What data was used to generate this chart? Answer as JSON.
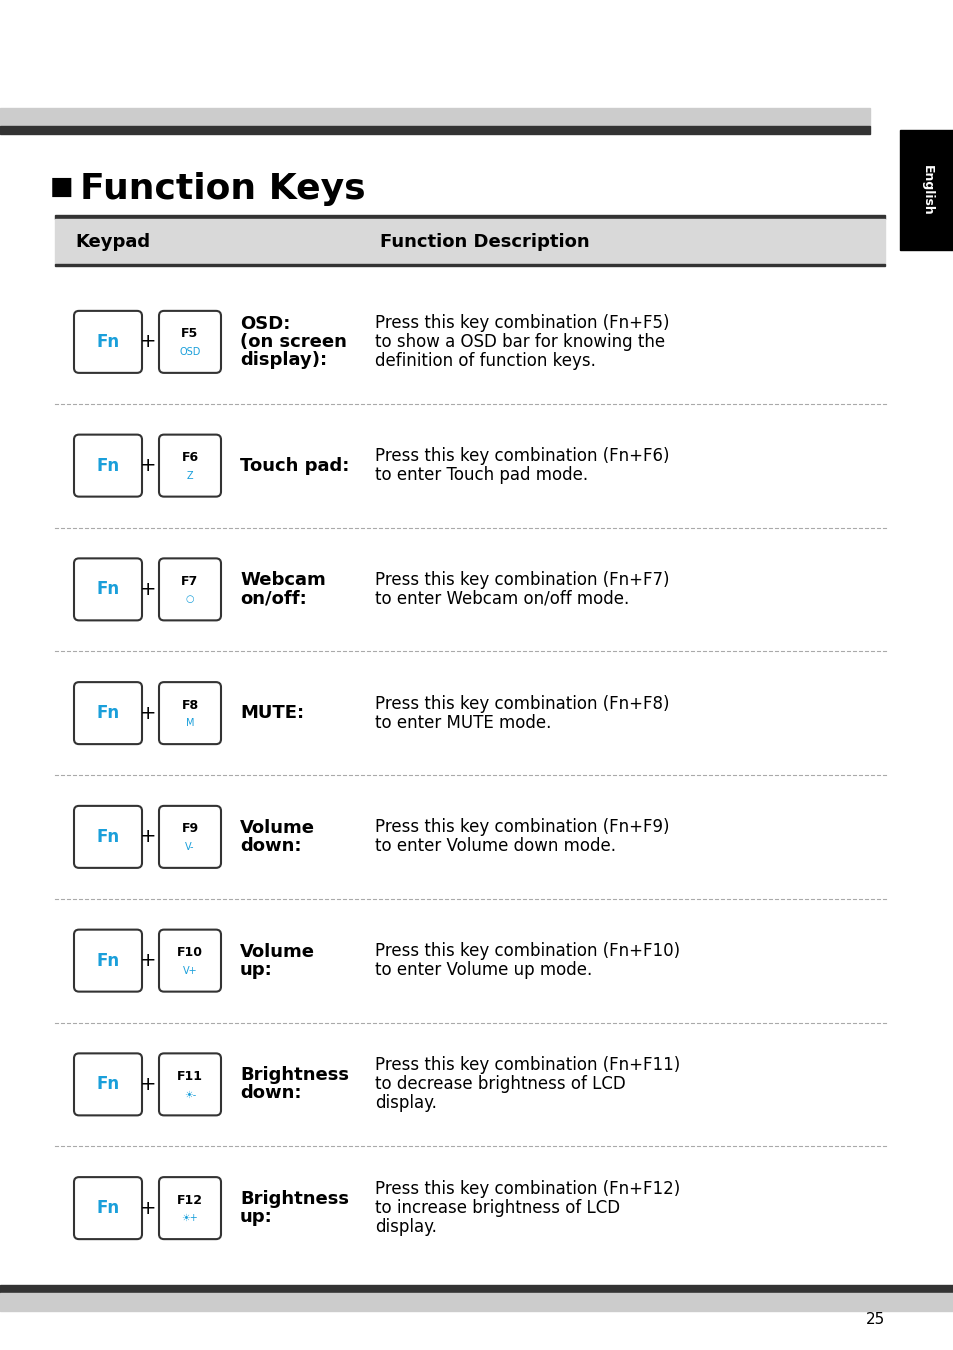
{
  "title": "Function Keys",
  "page_number": "25",
  "header_col1": "Keypad",
  "header_col2": "Function Description",
  "rows": [
    {
      "fn_key": "Fn",
      "fx_key": "F5",
      "fx_sub": "OSD",
      "label": "OSD:\n(on screen\ndisplay):",
      "description": "Press this key combination (Fn+F5)\nto show a OSD bar for knowing the\ndefinition of function keys."
    },
    {
      "fn_key": "Fn",
      "fx_key": "F6",
      "fx_sub": "✓",
      "label": "Touch pad:",
      "description": "Press this key combination (Fn+F6)\nto enter Touch pad mode."
    },
    {
      "fn_key": "Fn",
      "fx_key": "F7",
      "fx_sub": "○",
      "label": "Webcam\non/off:",
      "description": "Press this key combination (Fn+F7)\nto enter Webcam on/off mode."
    },
    {
      "fn_key": "Fn",
      "fx_key": "F8",
      "fx_sub": "🔇",
      "label": "MUTE:",
      "description": "Press this key combination (Fn+F8)\nto enter MUTE mode."
    },
    {
      "fn_key": "Fn",
      "fx_key": "F9",
      "fx_sub": "🔉",
      "label": "Volume\ndown:",
      "description": "Press this key combination (Fn+F9)\nto enter Volume down mode."
    },
    {
      "fn_key": "Fn",
      "fx_key": "F10",
      "fx_sub": "🔊",
      "label": "Volume\nup:",
      "description": "Press this key combination (Fn+F10)\nto enter Volume up mode."
    },
    {
      "fn_key": "Fn",
      "fx_key": "F11",
      "fx_sub": "☀",
      "label": "Brightness\ndown:",
      "description": "Press this key combination (Fn+F11)\nto decrease brightness of LCD\ndisplay."
    },
    {
      "fn_key": "Fn",
      "fx_key": "F12",
      "fx_sub": "☀",
      "label": "Brightness\nup:",
      "description": "Press this key combination (Fn+F12)\nto increase brightness of LCD\ndisplay."
    }
  ],
  "colors": {
    "background": "#ffffff",
    "header_bg": "#d9d9d9",
    "header_text": "#000000",
    "title_text": "#000000",
    "key_border": "#333333",
    "fn_text": "#1a9fda",
    "fx_text_main": "#000000",
    "fx_text_sub": "#1a9fda",
    "label_text": "#000000",
    "desc_text": "#000000",
    "divider": "#aaaaaa",
    "top_bar_dark": "#333333",
    "top_bar_light": "#cccccc",
    "side_tab_bg": "#000000",
    "side_tab_text": "#ffffff",
    "page_text": "#000000"
  }
}
